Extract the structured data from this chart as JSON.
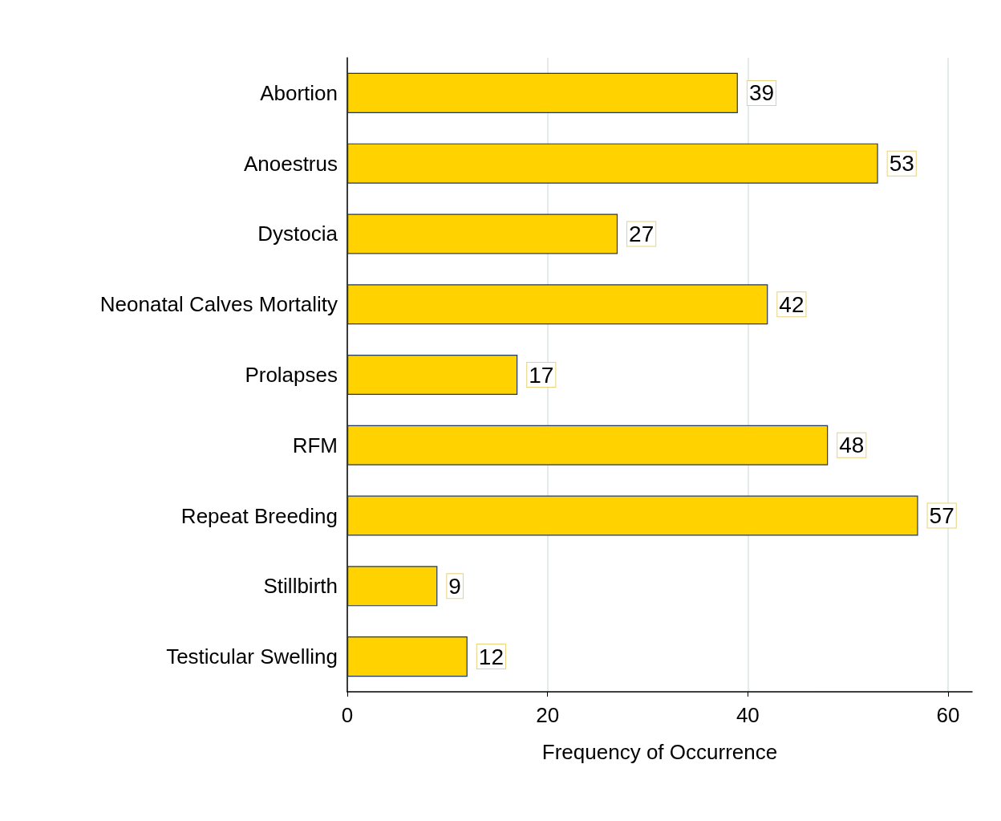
{
  "chart_data": {
    "type": "bar",
    "orientation": "horizontal",
    "xlabel": "Frequency of Occurrence",
    "categories": [
      "Abortion",
      "Anoestrus",
      "Dystocia",
      "Neonatal Calves Mortality",
      "Prolapses",
      "RFM",
      "Repeat Breeding",
      "Stillbirth",
      "Testicular Swelling"
    ],
    "values": [
      39,
      53,
      27,
      42,
      17,
      48,
      57,
      9,
      12
    ],
    "color": "#ffd200",
    "xlim": [
      0,
      62.4
    ],
    "xticks": [
      0,
      20,
      40,
      60
    ],
    "grid": "x",
    "data_labels": true
  }
}
